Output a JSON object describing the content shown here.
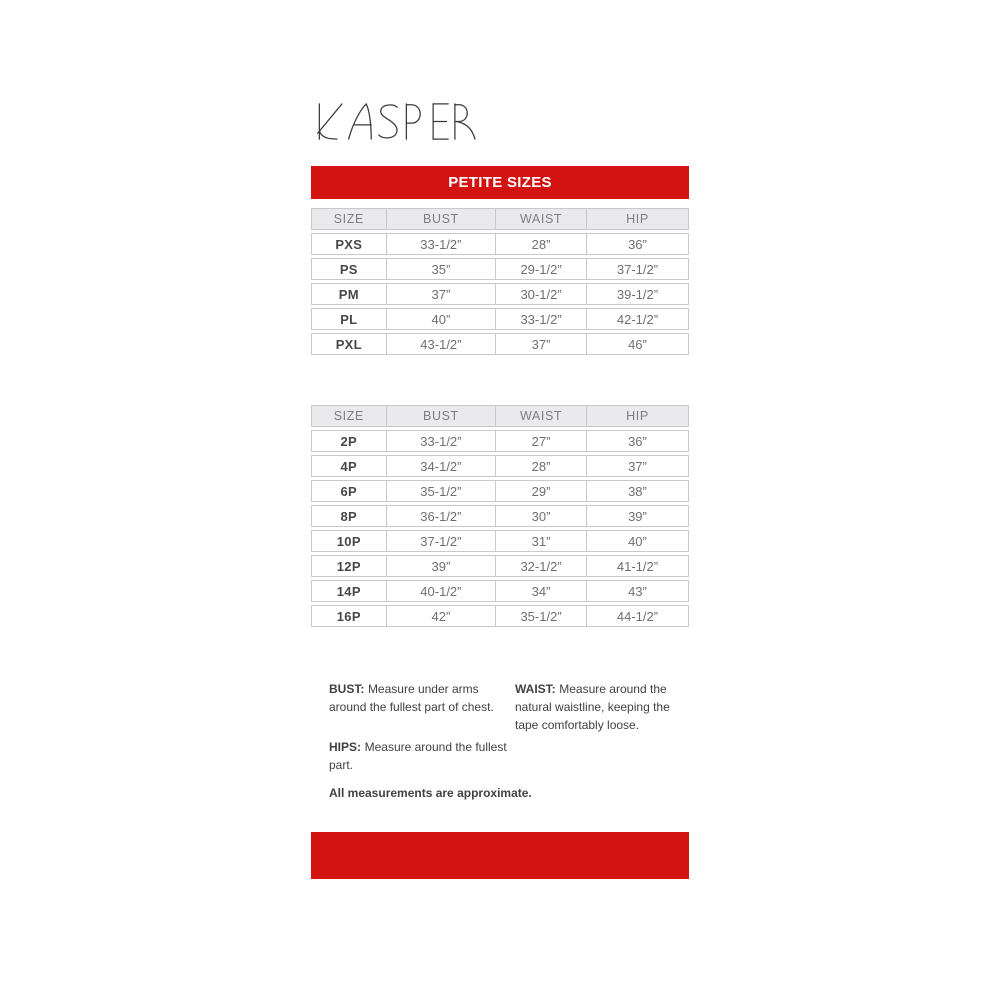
{
  "brand": {
    "name": "KASPER"
  },
  "banner": {
    "title": "PETITE SIZES"
  },
  "colors": {
    "accent_red": "#d31212",
    "header_bg": "#eaeaec",
    "table_border": "#c9c9cb"
  },
  "petite_letter_table": {
    "headers": [
      "SIZE",
      "BUST",
      "WAIST",
      "HIP"
    ],
    "rows": [
      [
        "PXS",
        "33-1/2”",
        "28”",
        "36”"
      ],
      [
        "PS",
        "35”",
        "29-1/2”",
        "37-1/2”"
      ],
      [
        "PM",
        "37”",
        "30-1/2”",
        "39-1/2”"
      ],
      [
        "PL",
        "40”",
        "33-1/2”",
        "42-1/2”"
      ],
      [
        "PXL",
        "43-1/2”",
        "37”",
        "46”"
      ]
    ]
  },
  "petite_number_table": {
    "headers": [
      "SIZE",
      "BUST",
      "WAIST",
      "HIP"
    ],
    "rows": [
      [
        "2P",
        "33-1/2”",
        "27”",
        "36”"
      ],
      [
        "4P",
        "34-1/2”",
        "28”",
        "37”"
      ],
      [
        "6P",
        "35-1/2”",
        "29”",
        "38”"
      ],
      [
        "8P",
        "36-1/2”",
        "30”",
        "39”"
      ],
      [
        "10P",
        "37-1/2”",
        "31”",
        "40”"
      ],
      [
        "12P",
        "39”",
        "32-1/2”",
        "41-1/2”"
      ],
      [
        "14P",
        "40-1/2”",
        "34”",
        "43”"
      ],
      [
        "16P",
        "42”",
        "35-1/2”",
        "44-1/2”"
      ]
    ]
  },
  "notes": {
    "bust_label": "BUST:",
    "bust_text": "Measure under arms around the fullest part of chest.",
    "waist_label": "WAIST:",
    "waist_text": "Measure around the natural waistline, keeping the tape comfortably loose.",
    "hips_label": "HIPS:",
    "hips_text": "Measure around the fullest part.",
    "disclaimer": "All measurements are approximate."
  }
}
